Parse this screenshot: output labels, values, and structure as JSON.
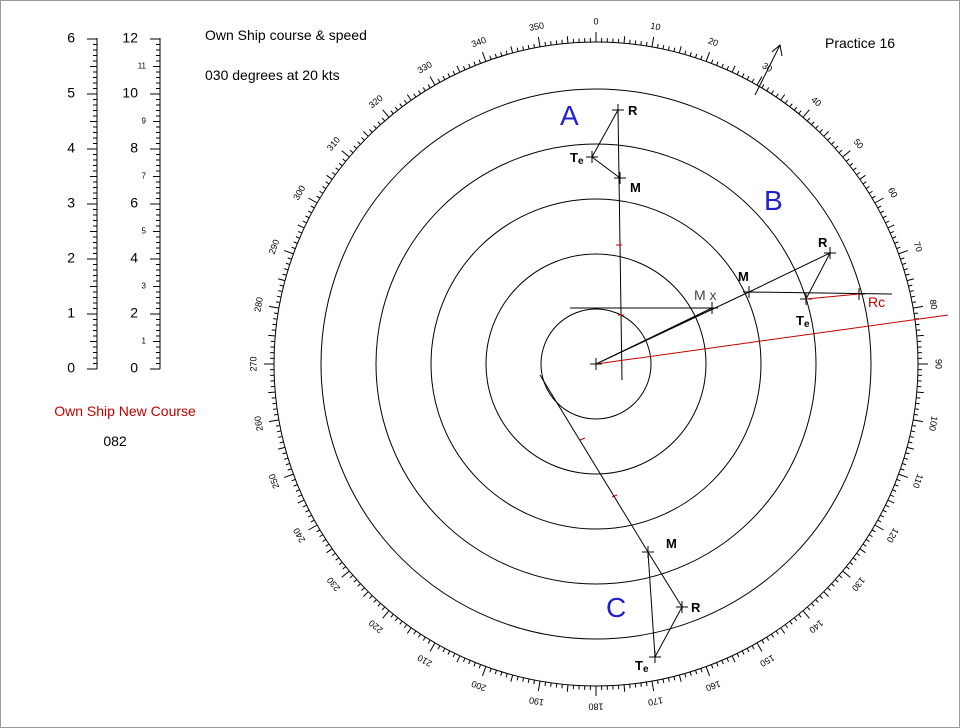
{
  "header": {
    "title": "Own Ship course & speed",
    "subtitle": "030 degrees at 20 kts",
    "practice": "Practice 16"
  },
  "new_course": {
    "label": "Own Ship New Course",
    "value": "082"
  },
  "scales": {
    "left": [
      0,
      1,
      2,
      3,
      4,
      5,
      6
    ],
    "right_major": [
      0,
      2,
      4,
      6,
      8,
      10,
      12
    ],
    "right_minor": [
      1,
      3,
      5,
      7,
      9,
      11
    ]
  },
  "compass": {
    "labels": [
      0,
      10,
      20,
      30,
      40,
      50,
      60,
      70,
      80,
      90,
      100,
      110,
      120,
      130,
      140,
      150,
      160,
      170,
      180,
      190,
      200,
      210,
      220,
      230,
      240,
      250,
      260,
      270,
      280,
      290,
      300,
      310,
      320,
      330,
      340,
      350
    ]
  },
  "plots": {
    "A": {
      "name": "A",
      "R": "R",
      "M": "M",
      "Te": {
        "main": "T",
        "sub": "e"
      }
    },
    "B": {
      "name": "B",
      "R": "R",
      "M": "M",
      "Te": {
        "main": "T",
        "sub": "e"
      },
      "Mx": "M x",
      "Rc": "Rc"
    },
    "C": {
      "name": "C",
      "R": "R",
      "M": "M",
      "Te": {
        "main": "T",
        "sub": "e"
      }
    }
  }
}
